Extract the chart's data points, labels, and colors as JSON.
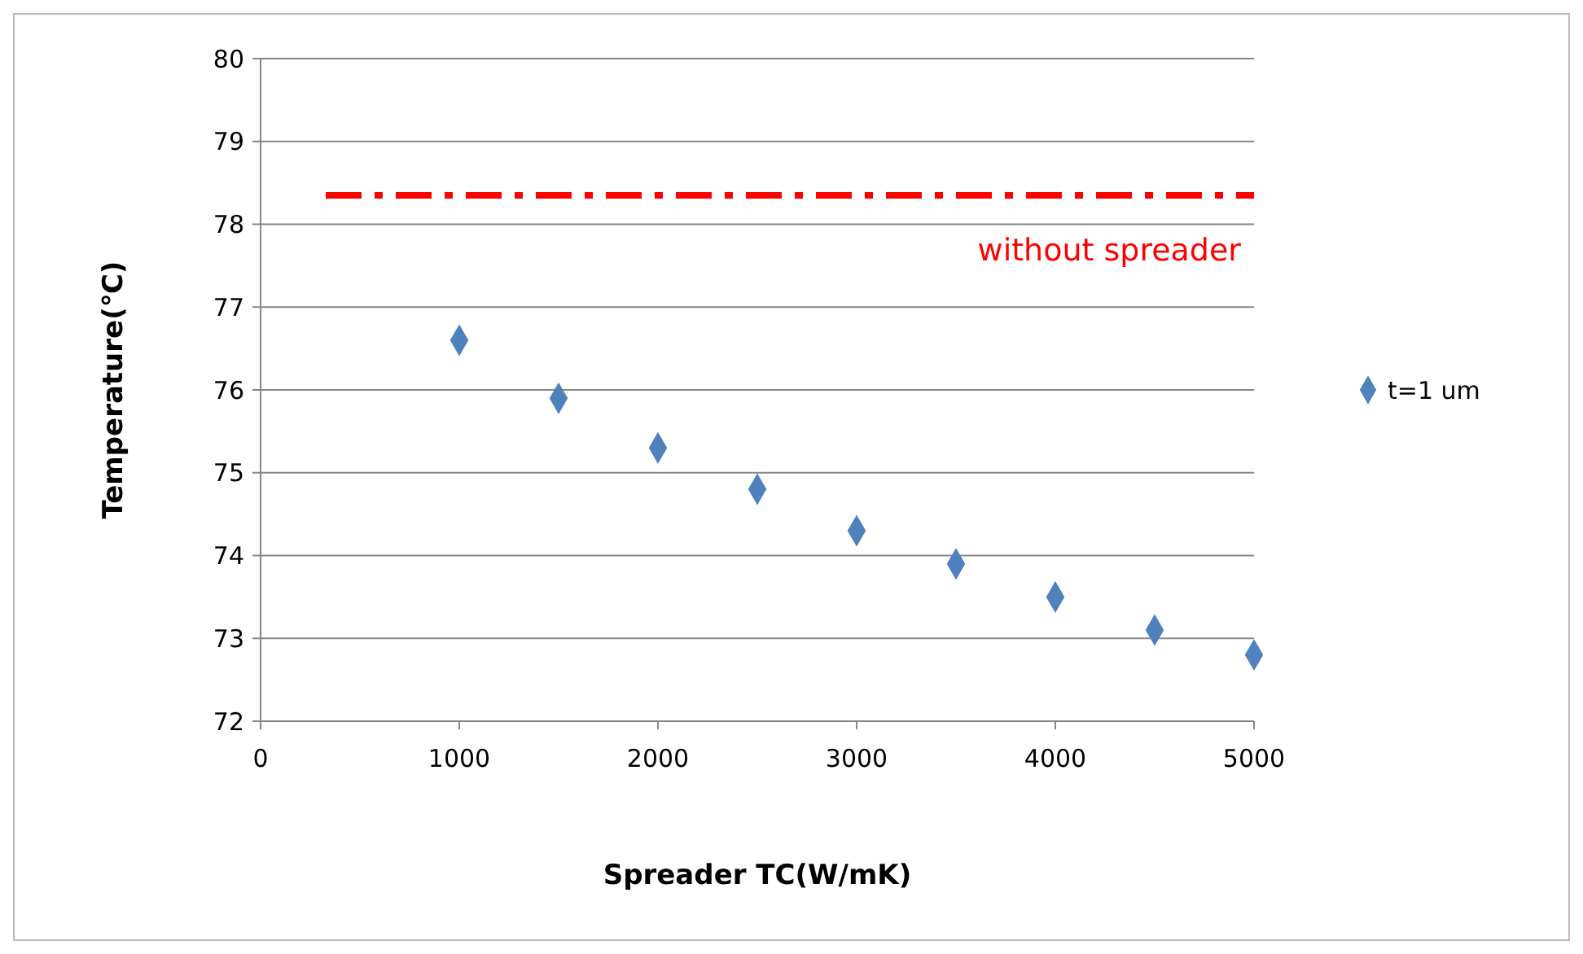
{
  "chart_data": {
    "type": "scatter",
    "xlabel": "Spreader TC(W/mK)",
    "ylabel": "Temperature(℃)",
    "x": [
      1000,
      1500,
      2000,
      2500,
      3000,
      3500,
      4000,
      4500,
      5000
    ],
    "series": [
      {
        "name": "t=1 um",
        "color": "#4f81bd",
        "values": [
          76.6,
          75.9,
          75.3,
          74.8,
          74.3,
          73.9,
          73.5,
          73.1,
          72.8
        ]
      }
    ],
    "xlim": [
      0,
      5000
    ],
    "xticks": [
      0,
      1000,
      2000,
      3000,
      4000,
      5000
    ],
    "ylim": [
      72,
      80
    ],
    "yticks": [
      72,
      73,
      74,
      75,
      76,
      77,
      78,
      79,
      80
    ],
    "ref_lines": [
      {
        "axis": "y",
        "value": 78.35,
        "label": "without spreader",
        "color": "#ff0000",
        "line_style": "dashed"
      }
    ],
    "grid": "y",
    "legend": "right",
    "marker": "diamond"
  }
}
